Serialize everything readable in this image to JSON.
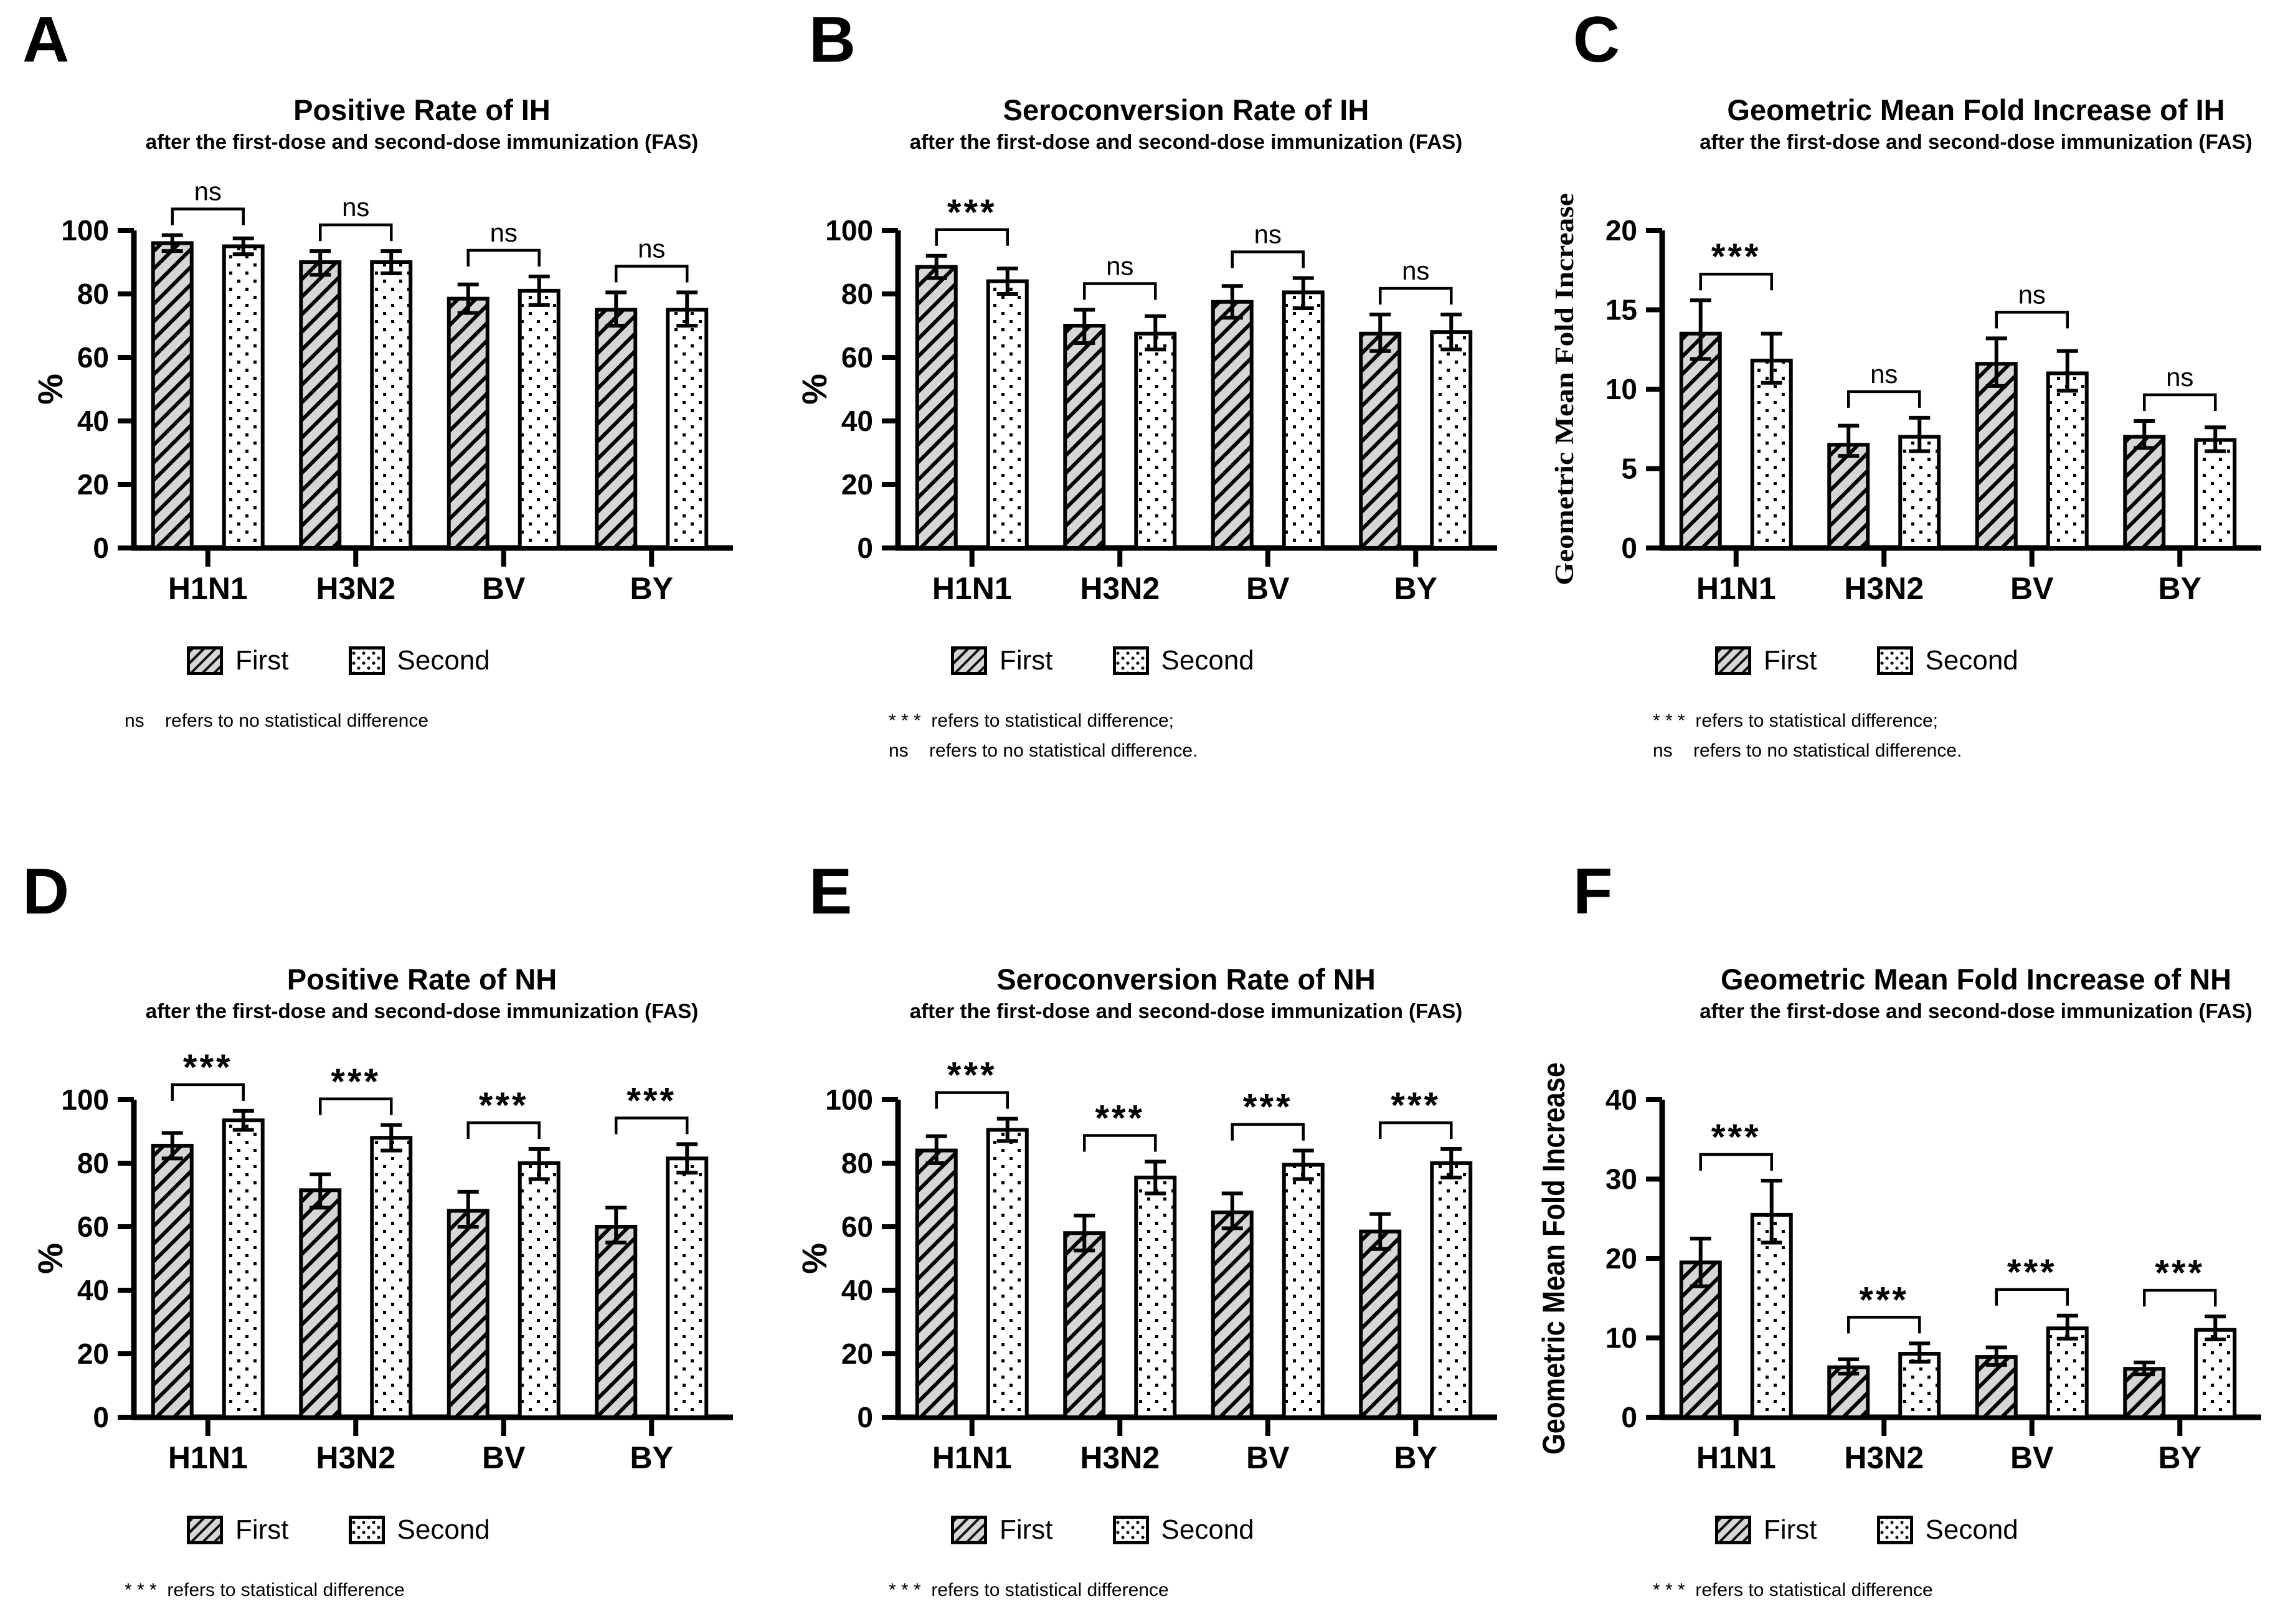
{
  "figure": {
    "background": "#ffffff",
    "ink_color": "#000000",
    "hatch_fill_color": "#d6d6d6",
    "dot_fill_color": "#ffffff",
    "legend_labels": [
      "First",
      "Second"
    ]
  },
  "chart_data": [
    {
      "panel": "A",
      "type": "bar",
      "title": "Positive Rate of IH",
      "subtitle": "after the first-dose and second-dose immunization (FAS)",
      "ylabel": "%",
      "ylim": [
        0,
        100
      ],
      "yticks": [
        0,
        20,
        40,
        60,
        80,
        100
      ],
      "categories": [
        "H1N1",
        "H3N2",
        "BV",
        "BY"
      ],
      "grid": false,
      "legend_position": "bottom",
      "series": [
        {
          "name": "First",
          "pattern": "hatch",
          "values": [
            96,
            90,
            78.5,
            75
          ],
          "err_lo": [
            93.5,
            86,
            74,
            70
          ],
          "err_hi": [
            98.5,
            93.5,
            83,
            80.5
          ]
        },
        {
          "name": "Second",
          "pattern": "dots",
          "values": [
            95,
            90,
            81,
            75
          ],
          "err_lo": [
            92.5,
            86.5,
            76.5,
            70
          ],
          "err_hi": [
            97.5,
            93.5,
            85.5,
            80.5
          ]
        }
      ],
      "significance": [
        "ns",
        "ns",
        "ns",
        "ns"
      ],
      "footnotes": [
        "ns    refers to no statistical difference"
      ]
    },
    {
      "panel": "B",
      "type": "bar",
      "title": "Seroconversion Rate of IH",
      "subtitle": "after the first-dose and second-dose immunization (FAS)",
      "ylabel": "%",
      "ylim": [
        0,
        100
      ],
      "yticks": [
        0,
        20,
        40,
        60,
        80,
        100
      ],
      "categories": [
        "H1N1",
        "H3N2",
        "BV",
        "BY"
      ],
      "grid": false,
      "legend_position": "bottom",
      "series": [
        {
          "name": "First",
          "pattern": "hatch",
          "values": [
            88.5,
            70,
            77.5,
            67.5
          ],
          "err_lo": [
            85,
            64.5,
            72.5,
            62
          ],
          "err_hi": [
            92,
            75,
            82.5,
            73.5
          ]
        },
        {
          "name": "Second",
          "pattern": "dots",
          "values": [
            84,
            67.5,
            80.5,
            68
          ],
          "err_lo": [
            80,
            62.5,
            75.5,
            62.5
          ],
          "err_hi": [
            88,
            73,
            85,
            73.5
          ]
        }
      ],
      "significance": [
        "***",
        "ns",
        "ns",
        "ns"
      ],
      "footnotes": [
        "* * *  refers to statistical difference;",
        "ns    refers to no statistical difference."
      ]
    },
    {
      "panel": "C",
      "type": "bar",
      "title": "Geometric Mean Fold Increase of IH",
      "subtitle": "after the first-dose and second-dose immunization (FAS)",
      "ylabel": "Geometric Mean Fold Increase",
      "ylim": [
        0,
        20
      ],
      "yticks": [
        0,
        5,
        10,
        15,
        20
      ],
      "categories": [
        "H1N1",
        "H3N2",
        "BV",
        "BY"
      ],
      "grid": false,
      "legend_position": "bottom",
      "series": [
        {
          "name": "First",
          "pattern": "hatch",
          "values": [
            13.5,
            6.5,
            11.6,
            7.0
          ],
          "err_lo": [
            11.9,
            5.8,
            10.2,
            6.3
          ],
          "err_hi": [
            15.6,
            7.7,
            13.2,
            8.0
          ]
        },
        {
          "name": "Second",
          "pattern": "dots",
          "values": [
            11.8,
            7.0,
            11.0,
            6.8
          ],
          "err_lo": [
            10.4,
            6.1,
            9.9,
            6.1
          ],
          "err_hi": [
            13.5,
            8.2,
            12.4,
            7.6
          ]
        }
      ],
      "significance": [
        "***",
        "ns",
        "ns",
        "ns"
      ],
      "footnotes": [
        "* * *  refers to statistical difference;",
        "ns    refers to no statistical difference."
      ]
    },
    {
      "panel": "D",
      "type": "bar",
      "title": "Positive Rate of NH",
      "subtitle": "after the first-dose and second-dose immunization (FAS)",
      "ylabel": "%",
      "ylim": [
        0,
        100
      ],
      "yticks": [
        0,
        20,
        40,
        60,
        80,
        100
      ],
      "categories": [
        "H1N1",
        "H3N2",
        "BV",
        "BY"
      ],
      "grid": false,
      "legend_position": "bottom",
      "series": [
        {
          "name": "First",
          "pattern": "hatch",
          "values": [
            85.5,
            71.5,
            65,
            60
          ],
          "err_lo": [
            81.5,
            66,
            60,
            55
          ],
          "err_hi": [
            89.5,
            76.5,
            71,
            66
          ]
        },
        {
          "name": "Second",
          "pattern": "dots",
          "values": [
            93.5,
            88,
            80,
            81.5
          ],
          "err_lo": [
            90.5,
            84,
            75,
            77
          ],
          "err_hi": [
            96.5,
            92,
            84.5,
            86
          ]
        }
      ],
      "significance": [
        "***",
        "***",
        "***",
        "***"
      ],
      "footnotes": [
        "* * *  refers to statistical difference"
      ]
    },
    {
      "panel": "E",
      "type": "bar",
      "title": "Seroconversion Rate of NH",
      "subtitle": "after the first-dose and second-dose immunization (FAS)",
      "ylabel": "%",
      "ylim": [
        0,
        100
      ],
      "yticks": [
        0,
        20,
        40,
        60,
        80,
        100
      ],
      "categories": [
        "H1N1",
        "H3N2",
        "BV",
        "BY"
      ],
      "grid": false,
      "legend_position": "bottom",
      "series": [
        {
          "name": "First",
          "pattern": "hatch",
          "values": [
            84,
            58,
            64.5,
            58.5
          ],
          "err_lo": [
            80,
            52.5,
            59.5,
            53
          ],
          "err_hi": [
            88.5,
            63.5,
            70.5,
            64
          ]
        },
        {
          "name": "Second",
          "pattern": "dots",
          "values": [
            90.5,
            75.5,
            79.5,
            80
          ],
          "err_lo": [
            87,
            70.5,
            75,
            75.5
          ],
          "err_hi": [
            94,
            80.5,
            84,
            84.5
          ]
        }
      ],
      "significance": [
        "***",
        "***",
        "***",
        "***"
      ],
      "footnotes": [
        "* * *  refers to statistical difference"
      ]
    },
    {
      "panel": "F",
      "type": "bar",
      "title": "Geometric Mean Fold Increase of NH",
      "subtitle": "after the first-dose and second-dose immunization (FAS)",
      "ylabel": "Geometric Mean Fold Increase",
      "ylim": [
        0,
        40
      ],
      "yticks": [
        0,
        10,
        20,
        30,
        40
      ],
      "categories": [
        "H1N1",
        "H3N2",
        "BV",
        "BY"
      ],
      "grid": false,
      "legend_position": "bottom",
      "series": [
        {
          "name": "First",
          "pattern": "hatch",
          "values": [
            19.5,
            6.3,
            7.6,
            6.1
          ],
          "err_lo": [
            16.5,
            5.5,
            6.6,
            5.4
          ],
          "err_hi": [
            22.5,
            7.3,
            8.8,
            6.9
          ]
        },
        {
          "name": "Second",
          "pattern": "dots",
          "values": [
            25.5,
            8.0,
            11.2,
            11.0
          ],
          "err_lo": [
            22,
            7.0,
            9.9,
            9.8
          ],
          "err_hi": [
            29.8,
            9.3,
            12.8,
            12.7
          ]
        }
      ],
      "significance": [
        "***",
        "***",
        "***",
        "***"
      ],
      "footnotes": [
        "* * *  refers to statistical difference"
      ]
    }
  ]
}
